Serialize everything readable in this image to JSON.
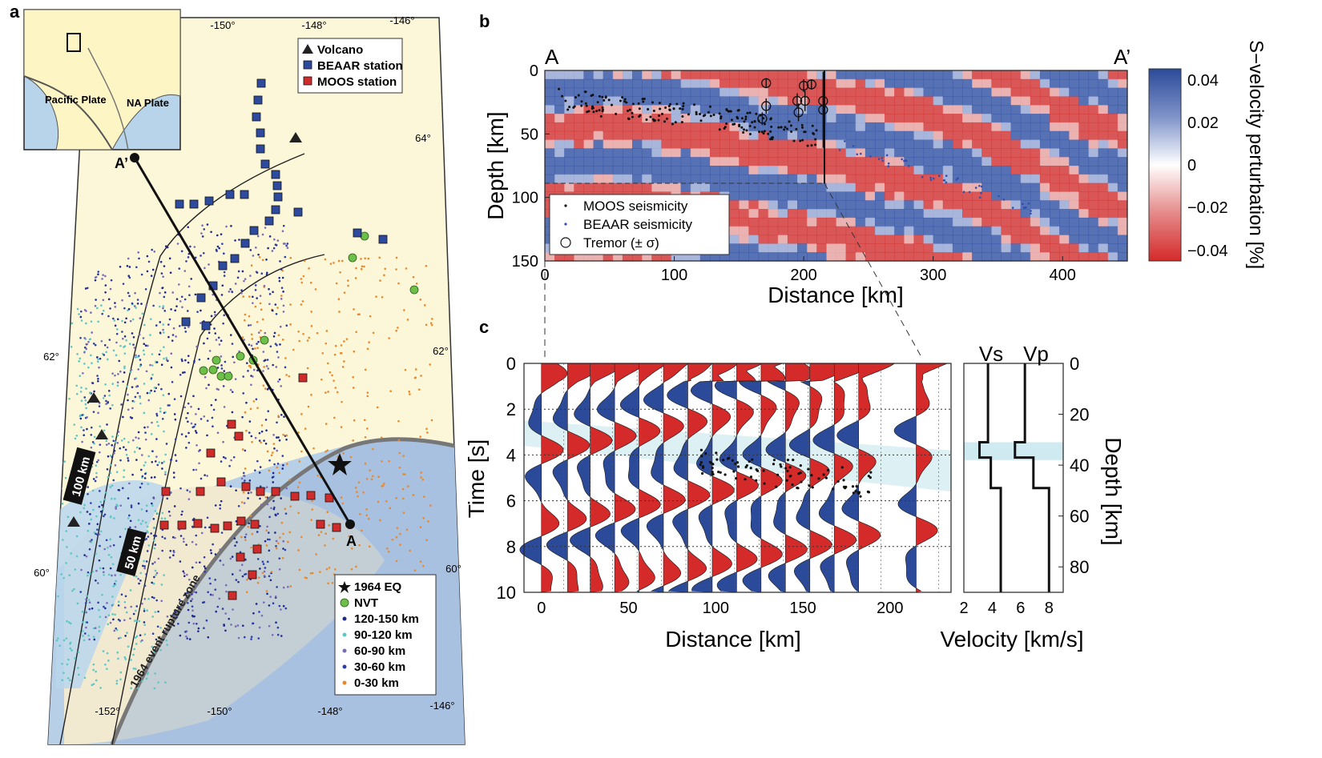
{
  "panels": {
    "a": "a",
    "b": "b",
    "c": "c"
  },
  "map": {
    "top_lon_labels": [
      "-150°",
      "-148°",
      "-146°"
    ],
    "bottom_lon_labels": [
      "-152°",
      "-150°",
      "-148°",
      "-146°"
    ],
    "left_lat_labels": [
      "62°",
      "60°"
    ],
    "right_lat_labels": [
      "64°",
      "62°",
      "60°"
    ],
    "inset_labels": {
      "pacific": "Pacific Plate",
      "na": "NA Plate"
    },
    "profile_labels": {
      "start": "A",
      "end": "A’"
    },
    "contour_labels": [
      "100 km",
      "50 km"
    ],
    "rupture_label": "1964 event rupture zone",
    "legend_top": [
      {
        "label": "Volcano",
        "symbol": "triangle",
        "color": "#222222"
      },
      {
        "label": "BEAAR station",
        "symbol": "square",
        "color": "#2e4a9e"
      },
      {
        "label": "MOOS station",
        "symbol": "square",
        "color": "#d02b2b"
      }
    ],
    "legend_bottom": [
      {
        "label": "1964 EQ",
        "symbol": "star",
        "color": "#111111"
      },
      {
        "label": "NVT",
        "symbol": "circle",
        "color": "#6cc04a"
      },
      {
        "label": "120-150 km",
        "symbol": "dot",
        "color": "#1f2a8c"
      },
      {
        "label": "90-120 km",
        "symbol": "dot",
        "color": "#5cc7c4"
      },
      {
        "label": "60-90 km",
        "symbol": "dot",
        "color": "#7a6ab8"
      },
      {
        "label": "30-60 km",
        "symbol": "dot",
        "color": "#2d3ea8"
      },
      {
        "label": "0-30 km",
        "symbol": "dot",
        "color": "#e8892b"
      }
    ]
  },
  "chart_data": [
    {
      "type": "heatmap",
      "panel": "b",
      "xlabel": "Distance [km]",
      "ylabel": "Depth [km]",
      "xlim": [
        0,
        450
      ],
      "ylim": [
        150,
        0
      ],
      "xticks": [
        0,
        100,
        200,
        300,
        400
      ],
      "yticks": [
        0,
        50,
        100,
        150
      ],
      "profile_start": "A",
      "profile_end": "A’",
      "colorbar": {
        "label": "S−velocity perturbation [%]",
        "ticks": [
          "0.04",
          "0.02",
          "0",
          "−0.02",
          "−0.04"
        ],
        "range": [
          -0.04,
          0.04
        ],
        "colors": [
          "#d42a2a",
          "#ffffff",
          "#2c4a9a"
        ]
      },
      "legend": [
        "MOOS seismicity",
        "BEAAR seismicity",
        "Tremor (± σ)"
      ],
      "tremor": [
        {
          "x": 171,
          "y": 10,
          "s": 4
        },
        {
          "x": 171,
          "y": 28,
          "s": 6
        },
        {
          "x": 168,
          "y": 38,
          "s": 5
        },
        {
          "x": 195,
          "y": 24,
          "s": 6
        },
        {
          "x": 196,
          "y": 33,
          "s": 7
        },
        {
          "x": 200,
          "y": 12,
          "s": 5
        },
        {
          "x": 201,
          "y": 24,
          "s": 8
        },
        {
          "x": 206,
          "y": 11,
          "s": 4
        },
        {
          "x": 215,
          "y": 24,
          "s": 9
        },
        {
          "x": 215,
          "y": 31,
          "s": 30
        }
      ]
    },
    {
      "type": "line",
      "panel": "c-traces",
      "xlabel": "Distance [km]",
      "ylabel": "Time [s]",
      "xlim": [
        -10,
        235
      ],
      "ylim": [
        10,
        0
      ],
      "xticks": [
        0,
        50,
        100,
        150,
        200
      ],
      "yticks": [
        0,
        2,
        4,
        6,
        8,
        10
      ],
      "trace_distances": [
        0,
        15,
        28,
        42,
        56,
        70,
        84,
        98,
        112,
        126,
        140,
        154,
        168,
        182,
        215
      ]
    },
    {
      "type": "line",
      "panel": "c-velocity",
      "xlabel": "Velocity [km/s]",
      "ylabel": "Depth [km]",
      "xlim": [
        2,
        9
      ],
      "ylim": [
        90,
        0
      ],
      "xticks": [
        2,
        4,
        6,
        8
      ],
      "yticks": [
        0,
        20,
        40,
        60,
        80
      ],
      "series": [
        {
          "name": "Vs",
          "x": [
            3.7,
            3.7,
            3.1,
            3.1,
            3.9,
            3.9,
            4.6,
            4.6
          ],
          "y": [
            0,
            31,
            31,
            37,
            37,
            49,
            49,
            90
          ]
        },
        {
          "name": "Vp",
          "x": [
            6.3,
            6.3,
            5.6,
            5.6,
            6.9,
            6.9,
            8.0,
            8.0
          ],
          "y": [
            0,
            31,
            31,
            37,
            37,
            49,
            49,
            90
          ]
        }
      ]
    }
  ]
}
